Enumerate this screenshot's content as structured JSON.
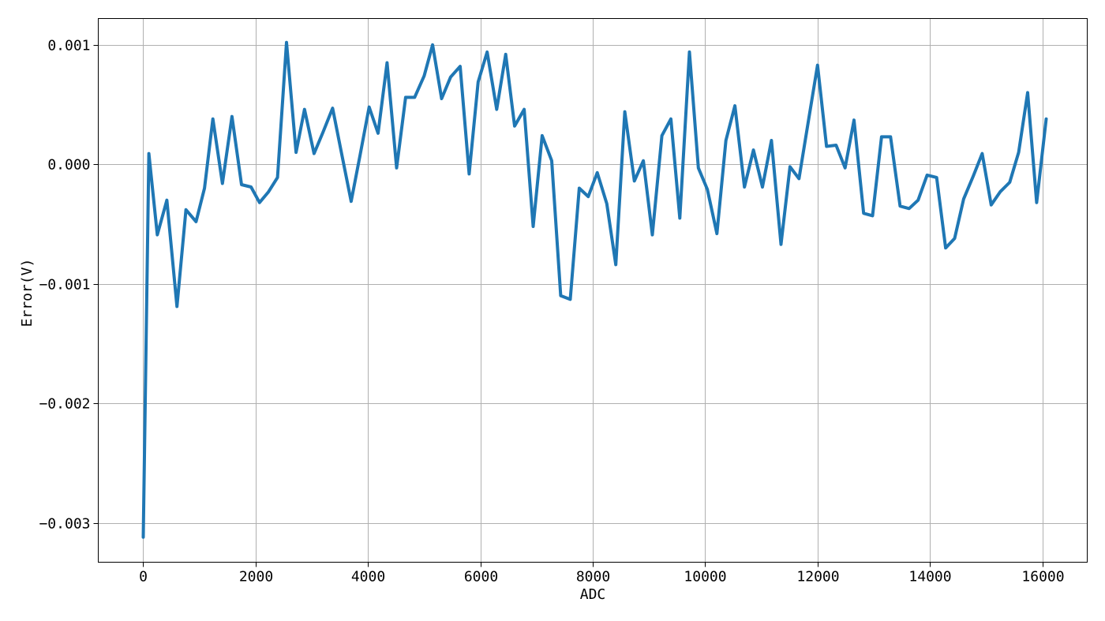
{
  "chart_data": {
    "type": "line",
    "title": "",
    "xlabel": "ADC",
    "ylabel": "Error(V)",
    "xlim": [
      -800,
      16800
    ],
    "ylim": [
      -0.00333,
      0.00122
    ],
    "xticks": [
      0,
      2000,
      4000,
      6000,
      8000,
      10000,
      12000,
      14000,
      16000
    ],
    "xtick_labels": [
      "0",
      "2000",
      "4000",
      "6000",
      "8000",
      "10000",
      "12000",
      "14000",
      "16000"
    ],
    "yticks": [
      0.001,
      0.0,
      -0.001,
      -0.002,
      -0.003
    ],
    "ytick_labels": [
      "0.001",
      "0.000",
      "−0.001",
      "−0.002",
      "−0.003"
    ],
    "grid": true,
    "legend": "none",
    "color": "#1f77b4",
    "series": [
      {
        "x": [
          0,
          100,
          250,
          420,
          600,
          760,
          940,
          1090,
          1240,
          1410,
          1580,
          1750,
          1920,
          2070,
          2230,
          2390,
          2550,
          2720,
          2870,
          3040,
          3200,
          3370,
          3530,
          3700,
          3860,
          4020,
          4180,
          4340,
          4510,
          4670,
          4830,
          5000,
          5150,
          5310,
          5470,
          5640,
          5800,
          5960,
          6120,
          6290,
          6450,
          6610,
          6780,
          6940,
          7100,
          7270,
          7430,
          7600,
          7760,
          7920,
          8080,
          8250,
          8410,
          8570,
          8740,
          8900,
          9060,
          9230,
          9390,
          9550,
          9720,
          9880,
          10040,
          10210,
          10370,
          10530,
          10700,
          10860,
          11020,
          11180,
          11350,
          11510,
          11670,
          11840,
          12000,
          12160,
          12330,
          12490,
          12650,
          12820,
          12980,
          13140,
          13300,
          13470,
          13630,
          13790,
          13950,
          14120,
          14280,
          14440,
          14600,
          14770,
          14930,
          15090,
          15250,
          15420,
          15580,
          15740,
          15900,
          16070
        ],
        "y": [
          -0.00312,
          9e-05,
          -0.00059,
          -0.0003,
          -0.00119,
          -0.00038,
          -0.00048,
          -0.0002,
          0.00038,
          -0.00016,
          0.0004,
          -0.00017,
          -0.00019,
          -0.00032,
          -0.00023,
          -0.00011,
          0.00102,
          0.0001,
          0.00046,
          9e-05,
          0.00027,
          0.00047,
          9e-05,
          -0.00031,
          8e-05,
          0.00048,
          0.00026,
          0.00085,
          -3e-05,
          0.00056,
          0.00056,
          0.00074,
          0.001,
          0.00055,
          0.00073,
          0.00082,
          -8e-05,
          0.00069,
          0.00094,
          0.00046,
          0.00092,
          0.00032,
          0.00046,
          -0.00052,
          0.00024,
          3e-05,
          -0.0011,
          -0.00113,
          -0.0002,
          -0.00027,
          -7e-05,
          -0.00033,
          -0.00084,
          0.00044,
          -0.00014,
          3e-05,
          -0.00059,
          0.00024,
          0.00038,
          -0.00045,
          0.00094,
          -3e-05,
          -0.00021,
          -0.00058,
          0.0002,
          0.00049,
          -0.00019,
          0.00012,
          -0.00019,
          0.0002,
          -0.00067,
          -2e-05,
          -0.00012,
          0.00037,
          0.00083,
          0.00015,
          0.00016,
          -3e-05,
          0.00037,
          -0.00041,
          -0.00043,
          0.00023,
          0.00023,
          -0.00035,
          -0.00037,
          -0.0003,
          -9e-05,
          -0.00011,
          -0.0007,
          -0.00062,
          -0.00029,
          -0.0001,
          9e-05,
          -0.00034,
          -0.00023,
          -0.00015,
          0.0001,
          0.0006,
          -0.00032,
          0.00038
        ]
      }
    ]
  }
}
